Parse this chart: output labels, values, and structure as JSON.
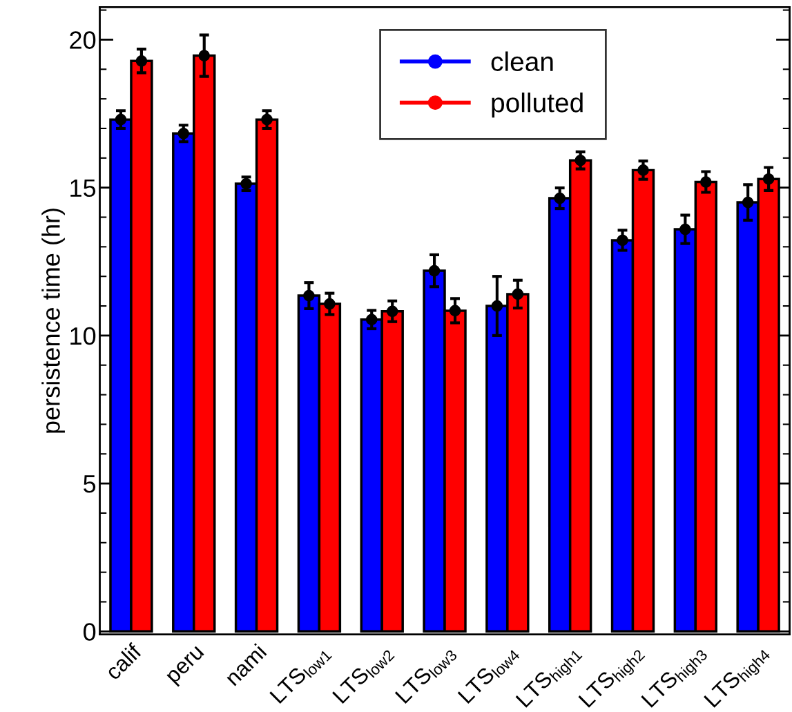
{
  "chart_data": {
    "type": "bar",
    "ylabel": "persistence time (hr)",
    "categories": [
      "calif",
      "peru",
      "nami",
      "LTS$_{low1}$",
      "LTS$_{low2}$",
      "LTS$_{low3}$",
      "LTS$_{low4}$",
      "LTS$_{high1}$",
      "LTS$_{high2}$",
      "LTS$_{high3}$",
      "LTS$_{high4}$"
    ],
    "series": [
      {
        "name": "clean",
        "color": "#0000ff",
        "values": [
          17.3,
          16.83,
          15.13,
          11.35,
          10.54,
          12.19,
          11.0,
          14.64,
          13.22,
          13.59,
          14.5
        ]
      },
      {
        "name": "polluted",
        "color": "#ff0000",
        "values": [
          19.28,
          19.46,
          17.3,
          11.07,
          10.82,
          10.84,
          11.4,
          15.92,
          15.59,
          15.19,
          15.29
        ]
      },
      {
        "type": "scatter",
        "color": "#000000",
        "values": [
          17.3,
          16.83,
          15.13,
          11.35,
          10.54,
          12.19,
          11.0,
          14.64,
          13.22,
          13.59,
          14.5
        ],
        "errors": [
          0.3,
          0.28,
          0.23,
          0.44,
          0.31,
          0.54,
          1.0,
          0.35,
          0.34,
          0.48,
          0.6
        ]
      },
      {
        "type": "scatter",
        "color": "#000000",
        "values": [
          19.28,
          19.46,
          17.3,
          11.07,
          10.82,
          10.84,
          11.4,
          15.92,
          15.59,
          15.19,
          15.29
        ],
        "errors": [
          0.4,
          0.7,
          0.3,
          0.36,
          0.35,
          0.41,
          0.47,
          0.29,
          0.31,
          0.35,
          0.39
        ]
      }
    ],
    "ylim": [
      -0.1,
      21.1
    ],
    "yticks": [
      0,
      5,
      10,
      15,
      20
    ],
    "grid": false,
    "legend": "top",
    "marker": "circle"
  }
}
